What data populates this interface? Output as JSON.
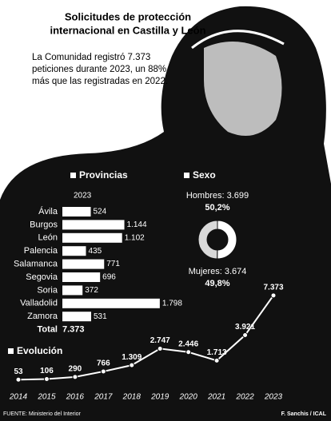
{
  "title": [
    "Solicitudes de protección",
    "internacional en Castilla y León"
  ],
  "subtitle": [
    "La Comunidad registró 7.373",
    "peticiones durante 2023, un 88%",
    "más que las registradas en 2022."
  ],
  "source": "FUENTE: Ministerio del Interior",
  "credit": "F. Sanchis / ICAL",
  "chart_data": [
    {
      "type": "bar",
      "title": "Provincias",
      "subtitle": "2023",
      "categories": [
        "Ávila",
        "Burgos",
        "León",
        "Palencia",
        "Salamanca",
        "Segovia",
        "Soria",
        "Valladolid",
        "Zamora"
      ],
      "values": [
        524,
        1144,
        1102,
        435,
        771,
        696,
        372,
        1798,
        531
      ],
      "value_labels": [
        "524",
        "1.144",
        "1.102",
        "435",
        "771",
        "696",
        "372",
        "1.798",
        "531"
      ],
      "total": {
        "label": "Total",
        "value": 7373,
        "value_label": "7.373"
      },
      "color": "#ffffff",
      "xlim": [
        0,
        1800
      ]
    },
    {
      "type": "pie",
      "title": "Sexo",
      "categories": [
        "Hombres",
        "Mujeres"
      ],
      "labels": [
        "Hombres: 3.699",
        "Mujeres: 3.674"
      ],
      "values": [
        50.2,
        49.8
      ],
      "value_labels": [
        "50,2%",
        "49,8%"
      ],
      "colors": [
        "#ffffff",
        "#d9d9d9"
      ]
    },
    {
      "type": "line",
      "title": "Evolución",
      "x": [
        2014,
        2015,
        2016,
        2017,
        2018,
        2019,
        2020,
        2021,
        2022,
        2023
      ],
      "values": [
        53,
        106,
        290,
        766,
        1309,
        2747,
        2446,
        1713,
        3921,
        7373
      ],
      "value_labels": [
        "53",
        "106",
        "290",
        "766",
        "1.309",
        "2.747",
        "2.446",
        "1.713",
        "3.921",
        "7.373"
      ],
      "color": "#ffffff",
      "ylim": [
        0,
        7500
      ],
      "xlim": [
        2014,
        2023
      ]
    }
  ]
}
